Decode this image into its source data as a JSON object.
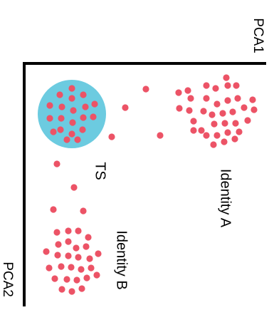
{
  "axes": {
    "x_label": "PCA1",
    "y_label": "PCA2"
  },
  "labels": {
    "ts": "TS",
    "identity_a": "Identity A",
    "identity_b": "Identity B"
  },
  "colors": {
    "dot": "#EC5366",
    "ts_circle": "#6CCBE0",
    "axis": "#000000"
  }
}
